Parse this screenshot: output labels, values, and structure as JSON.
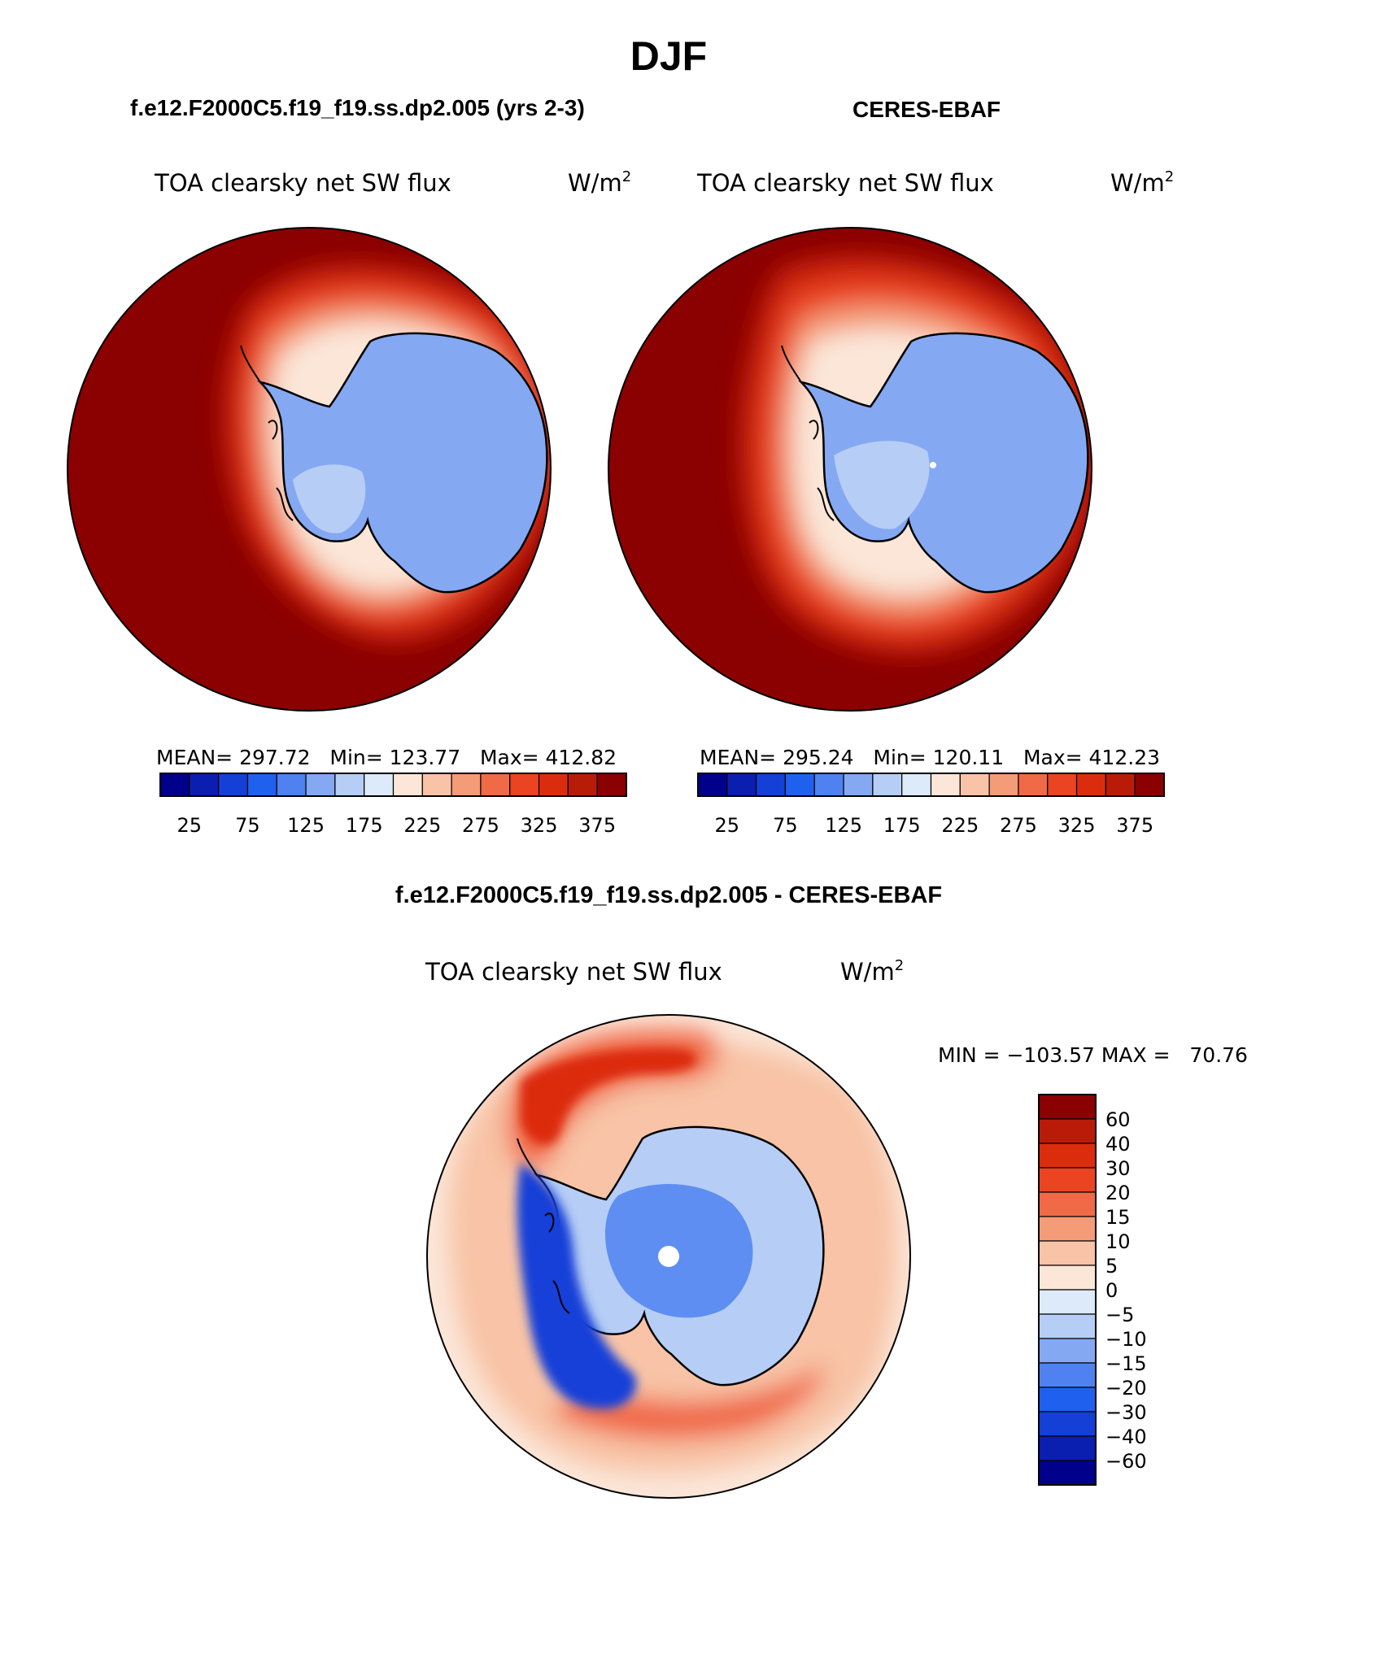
{
  "chart_data": {
    "type": "contour-map",
    "title": "DJF",
    "panels": [
      {
        "case_title": "f.e12.F2000C5.f19_f19.ss.dp2.005 (yrs 2-3)",
        "variable": "TOA clearsky net SW flux",
        "units": "W/m",
        "units_sup": "2",
        "stats": "MEAN= 297.72   Min= 123.77   Max= 412.82",
        "mean": 297.72,
        "min": 123.77,
        "max": 412.82
      },
      {
        "case_title": "CERES-EBAF",
        "variable": "TOA clearsky net SW flux",
        "units": "W/m",
        "units_sup": "2",
        "stats": "MEAN= 295.24   Min= 120.11   Max= 412.23",
        "mean": 295.24,
        "min": 120.11,
        "max": 412.23
      }
    ],
    "difference": {
      "title": "f.e12.F2000C5.f19_f19.ss.dp2.005 - CERES-EBAF",
      "variable": "TOA clearsky net SW flux",
      "units": "W/m",
      "units_sup": "2",
      "stats": "MIN = −103.57 MAX =   70.76",
      "min": -103.57,
      "max": 70.76
    },
    "colorbar_main": {
      "colors": [
        "#00008b",
        "#0a1eb0",
        "#1440d8",
        "#2060ee",
        "#4f82f0",
        "#85a8f2",
        "#b6cdf5",
        "#dceaf9",
        "#fbe6d8",
        "#f8c3a6",
        "#f49b78",
        "#f06a48",
        "#ea4423",
        "#dc2c0e",
        "#b81c08",
        "#8b0000"
      ],
      "tick_labels": [
        "25",
        "75",
        "125",
        "175",
        "225",
        "275",
        "325",
        "375"
      ]
    },
    "colorbar_diff": {
      "colors": [
        "#00008b",
        "#0a1eb0",
        "#1440d8",
        "#2060ee",
        "#4f82f0",
        "#85a8f2",
        "#b6cdf5",
        "#dceaf9",
        "#fbe6d8",
        "#f8c3a6",
        "#f49b78",
        "#f06a48",
        "#ea4423",
        "#dc2c0e",
        "#b81c08",
        "#8b0000"
      ],
      "tick_labels": [
        "60",
        "40",
        "30",
        "20",
        "15",
        "10",
        "5",
        "0",
        "−5",
        "−10",
        "−15",
        "−20",
        "−30",
        "−40",
        "−60"
      ]
    }
  }
}
